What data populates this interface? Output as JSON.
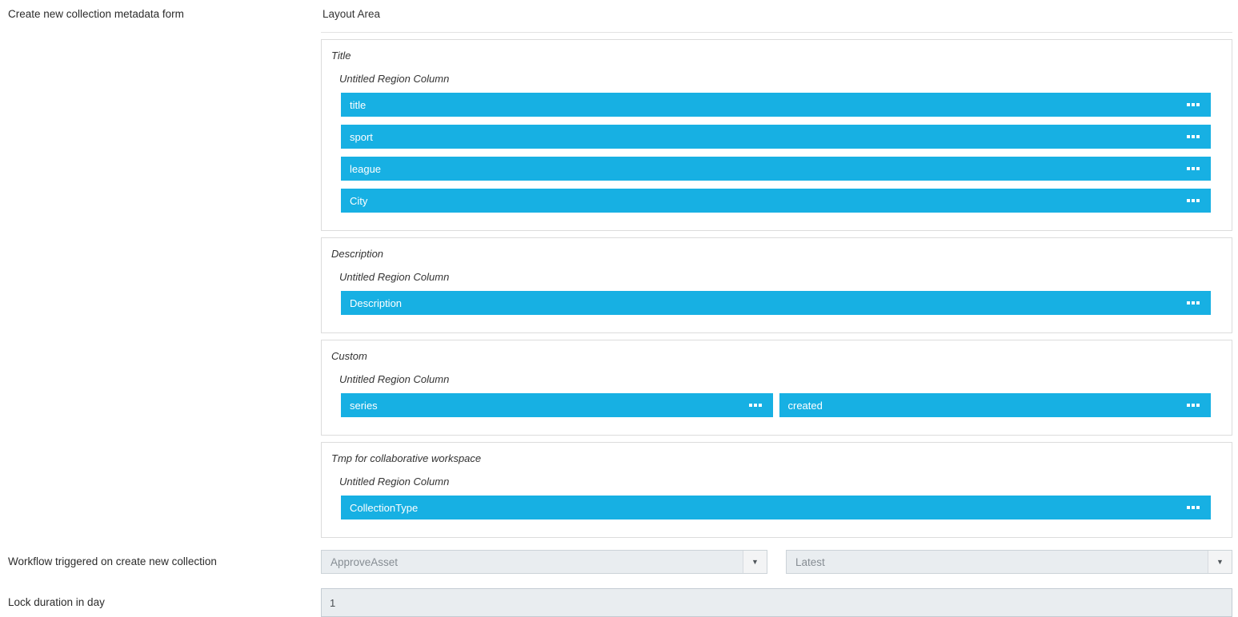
{
  "left_labels": {
    "metadata_form": "Create new collection metadata form",
    "workflow": "Workflow triggered on create new collection",
    "lock_duration": "Lock duration in day"
  },
  "layout_area": {
    "heading": "Layout Area",
    "sections": [
      {
        "title": "Title",
        "region": "Untitled Region Column",
        "fields": [
          {
            "label": "title",
            "width": "full"
          },
          {
            "label": "sport",
            "width": "full"
          },
          {
            "label": "league",
            "width": "full"
          },
          {
            "label": "City",
            "width": "full"
          }
        ]
      },
      {
        "title": "Description",
        "region": "Untitled Region Column",
        "fields": [
          {
            "label": "Description",
            "width": "full"
          }
        ]
      },
      {
        "title": "Custom",
        "region": "Untitled Region Column",
        "fields": [
          {
            "label": "series",
            "width": "half"
          },
          {
            "label": "created",
            "width": "half"
          }
        ]
      },
      {
        "title": "Tmp for collaborative workspace",
        "region": "Untitled Region Column",
        "fields": [
          {
            "label": "CollectionType",
            "width": "full"
          }
        ]
      }
    ]
  },
  "workflow_row": {
    "workflow_select": {
      "value": "ApproveAsset"
    },
    "version_select": {
      "value": "Latest"
    }
  },
  "lock_duration_row": {
    "value": "1"
  },
  "icons": {
    "drag_handle": "three-squares-drag-handle",
    "dropdown_arrow": "chevron-down"
  },
  "colors": {
    "field_bar_bg": "#17b0e3",
    "field_bar_text": "#ffffff",
    "control_bg": "#e9edf0"
  }
}
